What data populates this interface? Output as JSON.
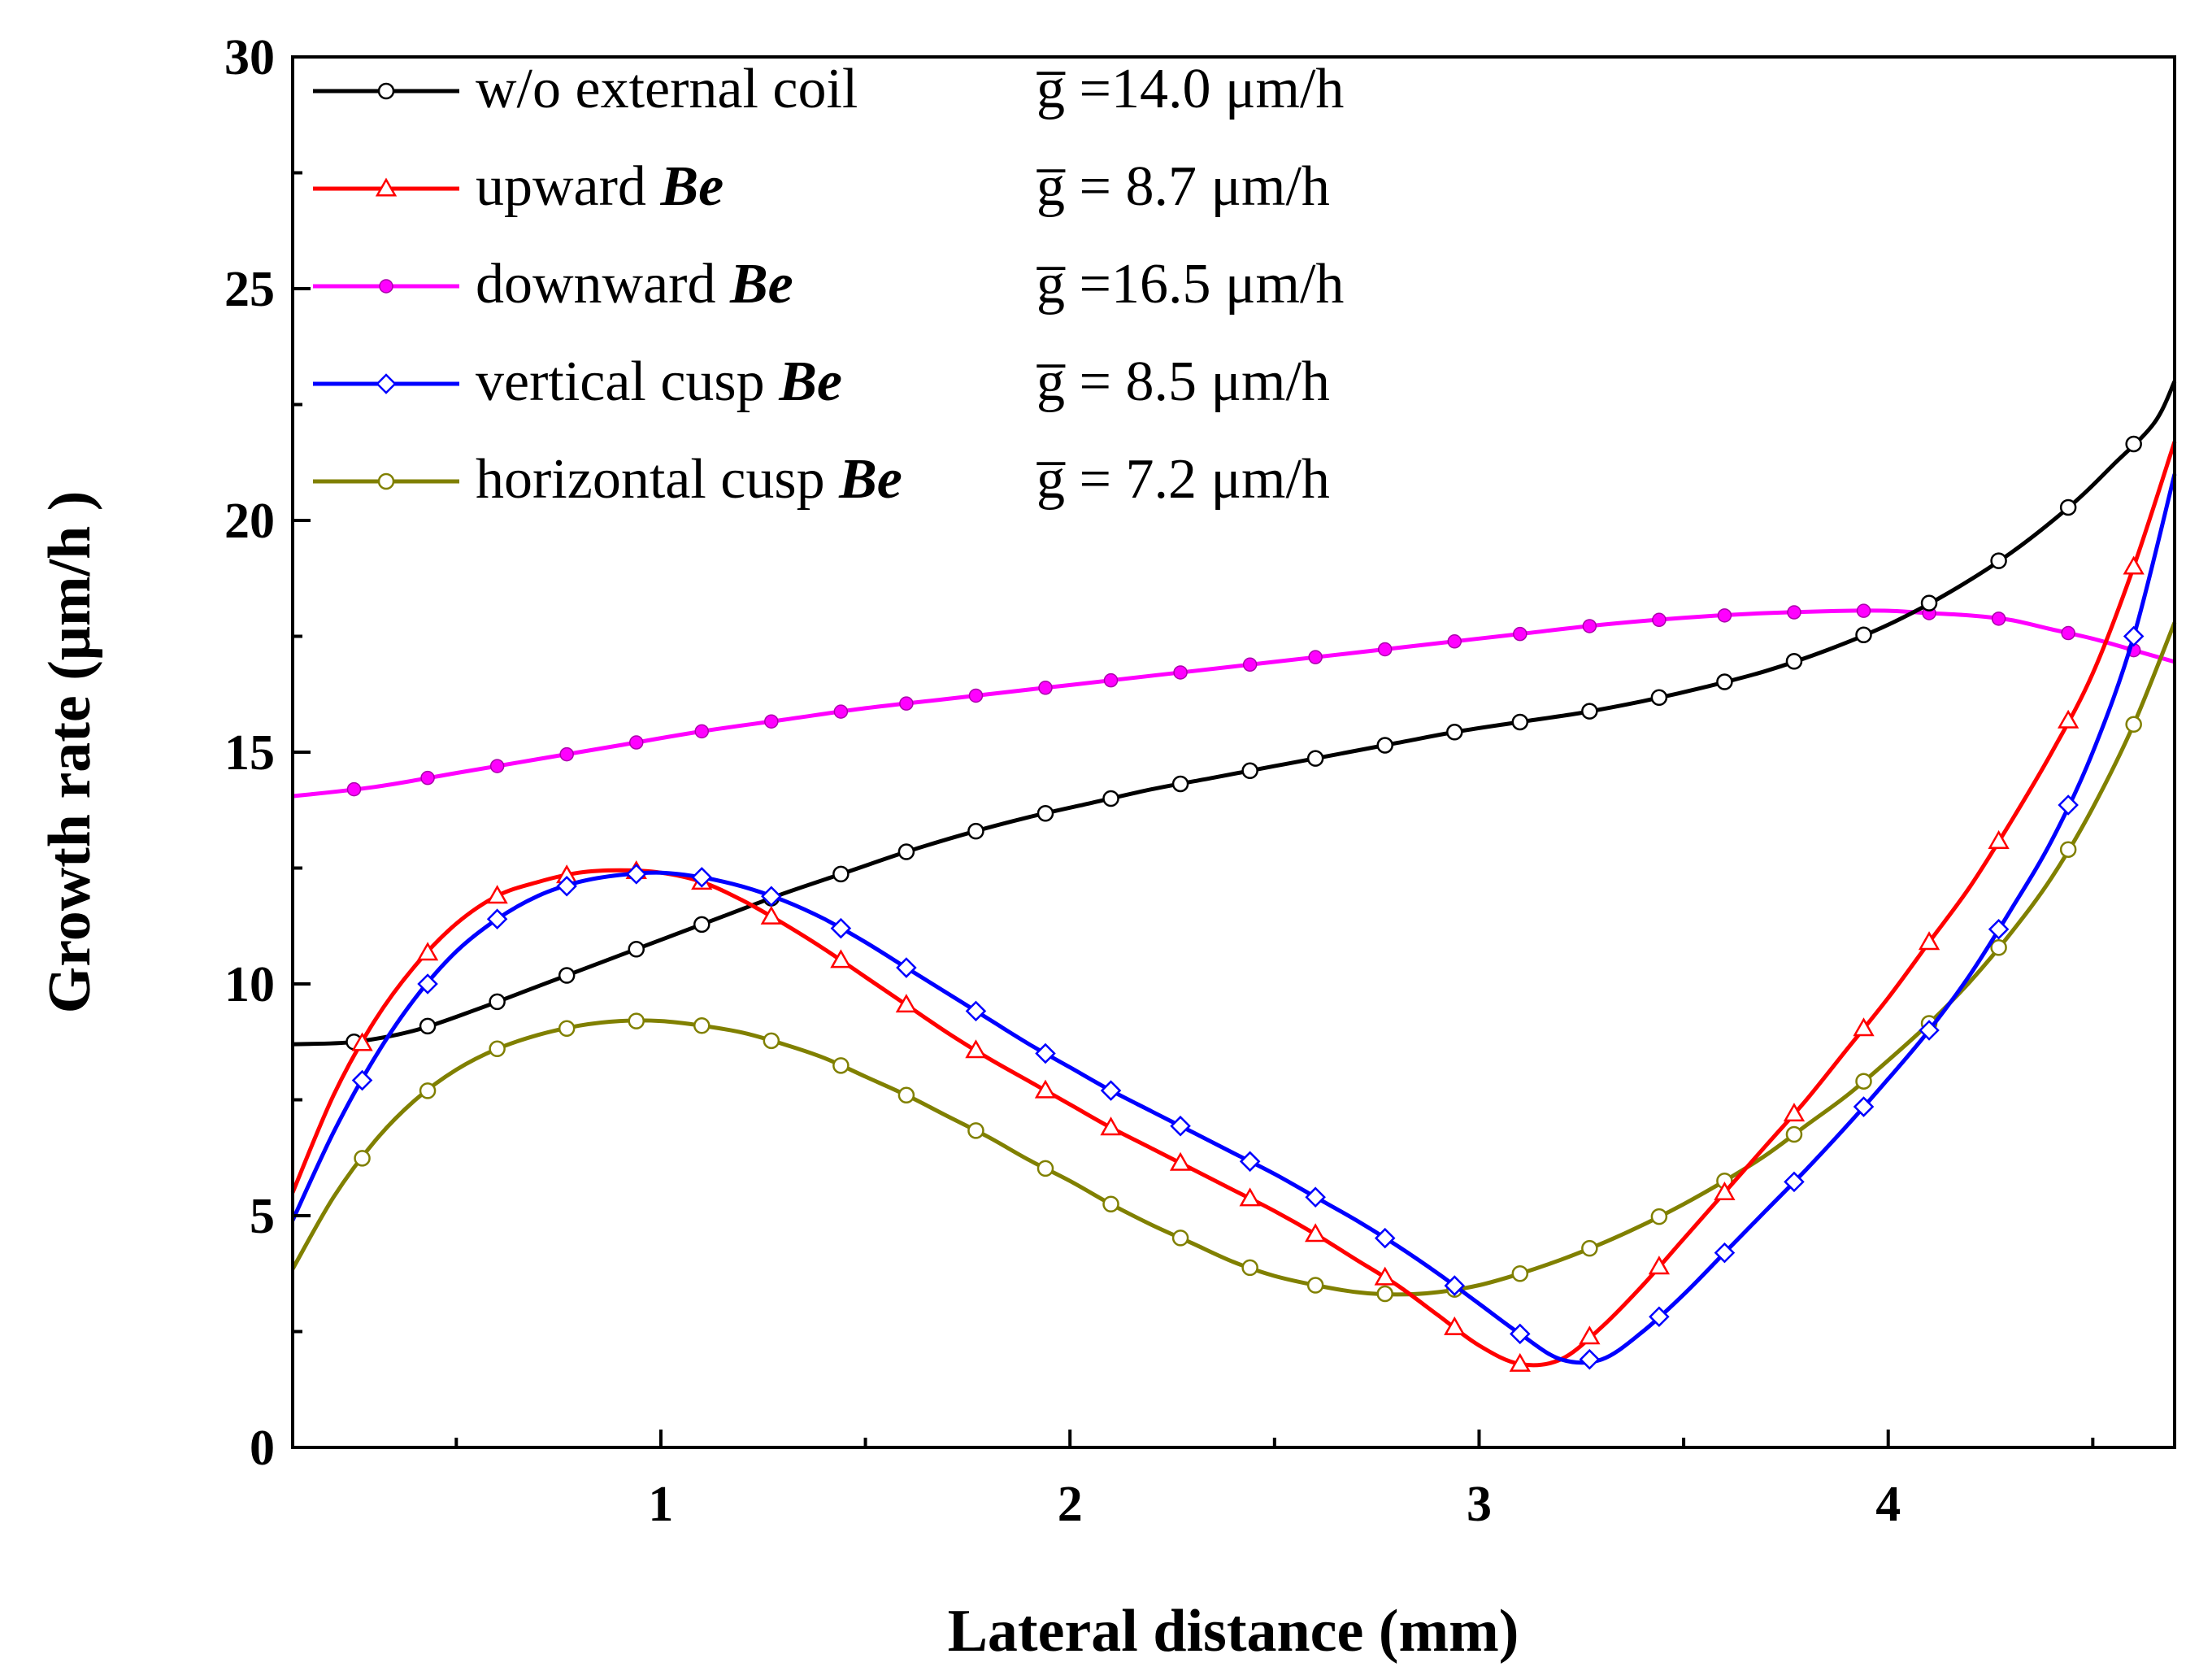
{
  "chart_data": {
    "type": "line",
    "title": "",
    "xlabel": "Lateral distance (mm)",
    "ylabel": "Growth rate (μm/h )",
    "xlim": [
      0.1,
      4.7
    ],
    "ylim": [
      0,
      30
    ],
    "xticks": [
      1,
      2,
      3,
      4
    ],
    "yticks": [
      0,
      5,
      10,
      15,
      20,
      25,
      30
    ],
    "grid": false,
    "legend_position": "top-left",
    "series": [
      {
        "name": "w/o external coil",
        "legend_label": "w/o external coil",
        "be_symbol": "",
        "mean_label": "g̅ =14.0 μm/h",
        "color": "#000000",
        "marker": "circle",
        "x": [
          0.1,
          0.25,
          0.4,
          0.55,
          0.7,
          0.85,
          1.0,
          1.15,
          1.3,
          1.45,
          1.6,
          1.75,
          1.9,
          2.05,
          2.2,
          2.35,
          2.5,
          2.65,
          2.8,
          2.95,
          3.1,
          3.25,
          3.4,
          3.55,
          3.7,
          3.85,
          4.0,
          4.15,
          4.3,
          4.45,
          4.55,
          4.65,
          4.7
        ],
        "y": [
          8.7,
          8.75,
          9.0,
          9.45,
          9.95,
          10.45,
          10.95,
          11.45,
          11.95,
          12.4,
          12.85,
          13.25,
          13.6,
          13.9,
          14.2,
          14.45,
          14.7,
          14.95,
          15.2,
          15.45,
          15.65,
          15.85,
          16.1,
          16.4,
          16.75,
          17.2,
          17.75,
          18.45,
          19.3,
          20.35,
          21.2,
          22.1,
          23.0
        ],
        "markers_x": [
          0.25,
          0.43,
          0.6,
          0.77,
          0.94,
          1.1,
          1.27,
          1.44,
          1.6,
          1.77,
          1.94,
          2.1,
          2.27,
          2.44,
          2.6,
          2.77,
          2.94,
          3.1,
          3.27,
          3.44,
          3.6,
          3.77,
          3.94,
          4.1,
          4.27,
          4.44,
          4.6
        ]
      },
      {
        "name": "upward Be",
        "legend_label": "upward ",
        "be_symbol": "Be",
        "mean_label": "g̅ =  8.7 μm/h",
        "color": "#ff0000",
        "marker": "triangle",
        "x": [
          0.1,
          0.2,
          0.3,
          0.4,
          0.5,
          0.6,
          0.7,
          0.8,
          0.9,
          1.0,
          1.1,
          1.2,
          1.3,
          1.4,
          1.5,
          1.6,
          1.7,
          1.8,
          1.9,
          2.0,
          2.1,
          2.2,
          2.3,
          2.4,
          2.5,
          2.6,
          2.7,
          2.8,
          2.9,
          3.0,
          3.1,
          3.2,
          3.3,
          3.4,
          3.5,
          3.6,
          3.7,
          3.8,
          3.9,
          4.0,
          4.1,
          4.2,
          4.3,
          4.4,
          4.5,
          4.6,
          4.7
        ],
        "y": [
          5.5,
          7.6,
          9.2,
          10.4,
          11.3,
          11.9,
          12.2,
          12.4,
          12.45,
          12.4,
          12.2,
          11.8,
          11.3,
          10.75,
          10.15,
          9.55,
          8.95,
          8.4,
          7.9,
          7.4,
          6.9,
          6.45,
          6.0,
          5.55,
          5.1,
          4.6,
          4.05,
          3.5,
          2.85,
          2.2,
          1.8,
          1.9,
          2.6,
          3.5,
          4.5,
          5.5,
          6.5,
          7.5,
          8.6,
          9.7,
          10.9,
          12.1,
          13.5,
          15.0,
          16.7,
          19.0,
          21.7
        ],
        "markers_x": [
          0.27,
          0.43,
          0.6,
          0.77,
          0.94,
          1.1,
          1.27,
          1.44,
          1.6,
          1.77,
          1.94,
          2.1,
          2.27,
          2.44,
          2.6,
          2.77,
          2.94,
          3.1,
          3.27,
          3.44,
          3.6,
          3.77,
          3.94,
          4.1,
          4.27,
          4.44,
          4.6
        ]
      },
      {
        "name": "downward Be",
        "legend_label": "downward ",
        "be_symbol": "Be",
        "mean_label": "g̅ =16.5 μm/h",
        "color": "#ff00ff",
        "marker": "dot",
        "x": [
          0.1,
          0.3,
          0.5,
          0.7,
          0.9,
          1.1,
          1.3,
          1.5,
          1.7,
          1.9,
          2.1,
          2.3,
          2.5,
          2.7,
          2.9,
          3.1,
          3.3,
          3.5,
          3.7,
          3.9,
          4.0,
          4.1,
          4.2,
          4.3,
          4.4,
          4.5,
          4.6,
          4.7
        ],
        "y": [
          14.05,
          14.25,
          14.55,
          14.85,
          15.15,
          15.45,
          15.7,
          15.95,
          16.15,
          16.35,
          16.55,
          16.75,
          16.95,
          17.15,
          17.35,
          17.55,
          17.75,
          17.9,
          18.0,
          18.05,
          18.05,
          18.0,
          17.95,
          17.85,
          17.65,
          17.45,
          17.2,
          16.95
        ],
        "markers_x": [
          0.25,
          0.43,
          0.6,
          0.77,
          0.94,
          1.1,
          1.27,
          1.44,
          1.6,
          1.77,
          1.94,
          2.1,
          2.27,
          2.44,
          2.6,
          2.77,
          2.94,
          3.1,
          3.27,
          3.44,
          3.6,
          3.77,
          3.94,
          4.1,
          4.27,
          4.44,
          4.6
        ]
      },
      {
        "name": "vertical cusp Be",
        "legend_label": "vertical cusp ",
        "be_symbol": "Be",
        "mean_label": "g̅ =  8.5 μm/h",
        "color": "#0000ff",
        "marker": "diamond",
        "x": [
          0.1,
          0.2,
          0.3,
          0.4,
          0.5,
          0.6,
          0.7,
          0.8,
          0.9,
          1.0,
          1.1,
          1.2,
          1.3,
          1.4,
          1.5,
          1.6,
          1.7,
          1.8,
          1.9,
          2.0,
          2.1,
          2.2,
          2.3,
          2.4,
          2.5,
          2.6,
          2.7,
          2.8,
          2.9,
          3.0,
          3.1,
          3.2,
          3.3,
          3.4,
          3.5,
          3.6,
          3.7,
          3.8,
          3.9,
          4.0,
          4.1,
          4.2,
          4.3,
          4.4,
          4.5,
          4.6,
          4.7
        ],
        "y": [
          4.9,
          6.8,
          8.4,
          9.7,
          10.7,
          11.4,
          11.9,
          12.2,
          12.35,
          12.4,
          12.3,
          12.1,
          11.8,
          11.4,
          10.9,
          10.35,
          9.8,
          9.25,
          8.7,
          8.2,
          7.7,
          7.25,
          6.8,
          6.35,
          5.9,
          5.4,
          4.9,
          4.35,
          3.75,
          3.1,
          2.45,
          1.9,
          1.9,
          2.5,
          3.3,
          4.2,
          5.1,
          6.0,
          6.95,
          7.95,
          9.0,
          10.2,
          11.6,
          13.1,
          15.0,
          17.5,
          21.0
        ],
        "markers_x": [
          0.27,
          0.43,
          0.6,
          0.77,
          0.94,
          1.1,
          1.27,
          1.44,
          1.6,
          1.77,
          1.94,
          2.1,
          2.27,
          2.44,
          2.6,
          2.77,
          2.94,
          3.1,
          3.27,
          3.44,
          3.6,
          3.77,
          3.94,
          4.1,
          4.27,
          4.44,
          4.6
        ]
      },
      {
        "name": "horizontal cusp Be",
        "legend_label": "horizontal cusp ",
        "be_symbol": "Be",
        "mean_label": "g̅ =  7.2 μm/h",
        "color": "#808000",
        "marker": "circle",
        "x": [
          0.1,
          0.2,
          0.3,
          0.4,
          0.5,
          0.6,
          0.7,
          0.8,
          0.9,
          1.0,
          1.1,
          1.2,
          1.3,
          1.4,
          1.5,
          1.6,
          1.7,
          1.8,
          1.9,
          2.0,
          2.1,
          2.2,
          2.3,
          2.4,
          2.5,
          2.6,
          2.7,
          2.8,
          2.9,
          3.0,
          3.1,
          3.2,
          3.3,
          3.4,
          3.5,
          3.6,
          3.7,
          3.8,
          3.9,
          4.0,
          4.1,
          4.2,
          4.3,
          4.4,
          4.5,
          4.6,
          4.7
        ],
        "y": [
          3.85,
          5.4,
          6.6,
          7.5,
          8.15,
          8.6,
          8.9,
          9.1,
          9.2,
          9.2,
          9.1,
          8.95,
          8.7,
          8.4,
          8.0,
          7.6,
          7.15,
          6.7,
          6.2,
          5.75,
          5.25,
          4.8,
          4.4,
          4.0,
          3.7,
          3.5,
          3.35,
          3.3,
          3.35,
          3.5,
          3.75,
          4.05,
          4.4,
          4.8,
          5.25,
          5.75,
          6.3,
          6.95,
          7.6,
          8.35,
          9.15,
          10.05,
          11.1,
          12.3,
          13.8,
          15.6,
          17.8
        ],
        "markers_x": [
          0.27,
          0.43,
          0.6,
          0.77,
          0.94,
          1.1,
          1.27,
          1.44,
          1.6,
          1.77,
          1.94,
          2.1,
          2.27,
          2.44,
          2.6,
          2.77,
          2.94,
          3.1,
          3.27,
          3.44,
          3.6,
          3.77,
          3.94,
          4.1,
          4.27,
          4.44,
          4.6
        ]
      }
    ]
  }
}
